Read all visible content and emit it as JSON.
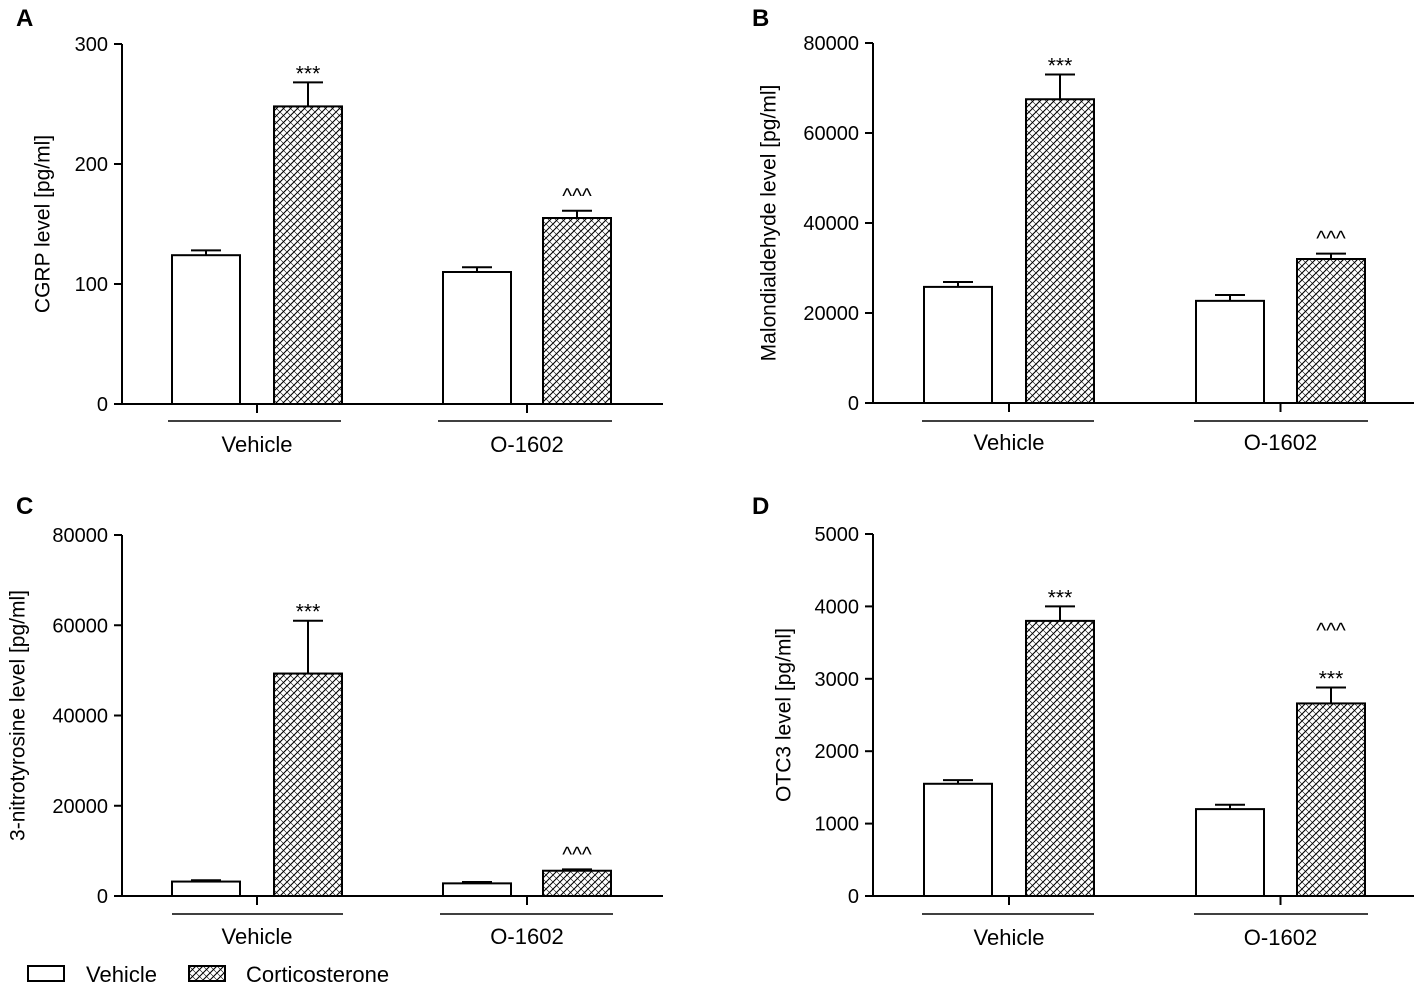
{
  "legend": {
    "items": [
      {
        "label": "Vehicle",
        "pattern": "open"
      },
      {
        "label": "Corticosterone",
        "pattern": "hatched"
      }
    ]
  },
  "chart_data": [
    {
      "panel": "A",
      "type": "bar",
      "ylabel": "CGRP level [pg/ml]",
      "ylim": [
        0,
        300
      ],
      "yticks": [
        0,
        100,
        200,
        300
      ],
      "groups": [
        "Vehicle",
        "O-1602"
      ],
      "series": [
        {
          "name": "Vehicle",
          "values": [
            124,
            110
          ],
          "errors": [
            4,
            4
          ]
        },
        {
          "name": "Corticosterone",
          "values": [
            248,
            155
          ],
          "errors": [
            20,
            6
          ]
        }
      ],
      "annotations": [
        {
          "group": 0,
          "series": 1,
          "text": "***"
        },
        {
          "group": 1,
          "series": 1,
          "text": "^^^"
        }
      ]
    },
    {
      "panel": "B",
      "type": "bar",
      "ylabel": "Malondialdehyde level [pg/ml]",
      "ylim": [
        0,
        80000
      ],
      "yticks": [
        0,
        20000,
        40000,
        60000,
        80000
      ],
      "groups": [
        "Vehicle",
        "O-1602"
      ],
      "series": [
        {
          "name": "Vehicle",
          "values": [
            25800,
            22700
          ],
          "errors": [
            1100,
            1300
          ]
        },
        {
          "name": "Corticosterone",
          "values": [
            67500,
            32000
          ],
          "errors": [
            5500,
            1200
          ]
        }
      ],
      "annotations": [
        {
          "group": 0,
          "series": 1,
          "text": "***"
        },
        {
          "group": 1,
          "series": 1,
          "text": "^^^"
        }
      ]
    },
    {
      "panel": "C",
      "type": "bar",
      "ylabel": "3-nitrotyrosine level [pg/ml]",
      "ylim": [
        0,
        80000
      ],
      "yticks": [
        0,
        20000,
        40000,
        60000,
        80000
      ],
      "groups": [
        "Vehicle",
        "O-1602"
      ],
      "series": [
        {
          "name": "Vehicle",
          "values": [
            3200,
            2800
          ],
          "errors": [
            300,
            300
          ]
        },
        {
          "name": "Corticosterone",
          "values": [
            49300,
            5600
          ],
          "errors": [
            11700,
            300
          ]
        }
      ],
      "annotations": [
        {
          "group": 0,
          "series": 1,
          "text": "***"
        },
        {
          "group": 1,
          "series": 1,
          "text": "^^^"
        }
      ]
    },
    {
      "panel": "D",
      "type": "bar",
      "ylabel": "OTC3 level [pg/ml]",
      "ylim": [
        0,
        5000
      ],
      "yticks": [
        0,
        1000,
        2000,
        3000,
        4000,
        5000
      ],
      "groups": [
        "Vehicle",
        "O-1602"
      ],
      "series": [
        {
          "name": "Vehicle",
          "values": [
            1550,
            1200
          ],
          "errors": [
            50,
            60
          ]
        },
        {
          "name": "Corticosterone",
          "values": [
            3800,
            2660
          ],
          "errors": [
            200,
            220
          ]
        }
      ],
      "annotations": [
        {
          "group": 0,
          "series": 1,
          "text": "***"
        },
        {
          "group": 1,
          "series": 1,
          "text": "***"
        },
        {
          "group": 1,
          "series": 1,
          "text": "^^^"
        }
      ]
    }
  ]
}
